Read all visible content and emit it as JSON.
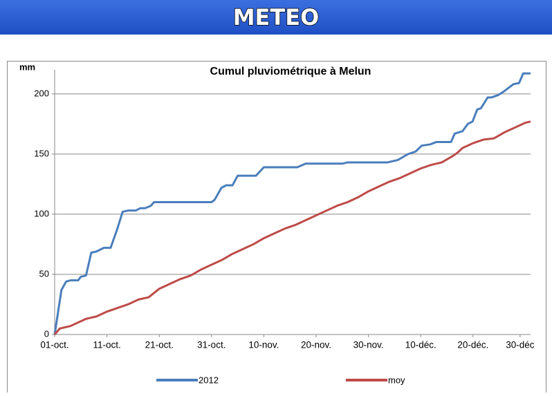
{
  "header": {
    "title": "METEO"
  },
  "chart_data": {
    "type": "line",
    "title": "Cumul pluviométrique à Melun",
    "y_label": "mm",
    "xlim": [
      0,
      91
    ],
    "ylim": [
      0,
      220
    ],
    "xticks": [
      {
        "value": 0,
        "label": "01-oct."
      },
      {
        "value": 10,
        "label": "11-oct."
      },
      {
        "value": 20,
        "label": "21-oct."
      },
      {
        "value": 30,
        "label": "31-oct."
      },
      {
        "value": 40,
        "label": "10-nov."
      },
      {
        "value": 50,
        "label": "20-nov."
      },
      {
        "value": 60,
        "label": "30-nov."
      },
      {
        "value": 70,
        "label": "10-déc."
      },
      {
        "value": 80,
        "label": "20-déc."
      },
      {
        "value": 89,
        "label": "30-déc"
      }
    ],
    "yticks": [
      0,
      50,
      100,
      150,
      200
    ],
    "grid": true,
    "legend": "bottom",
    "series": [
      {
        "name": "2012",
        "color": "#4a7ebb",
        "x": [
          0,
          1.3,
          2.2,
          3,
          4.5,
          5,
          6,
          7,
          8,
          9.4,
          10.7,
          12,
          13,
          14,
          15.5,
          16.4,
          17.3,
          18.4,
          19,
          30,
          30.6,
          31.9,
          32.8,
          34,
          35,
          38.5,
          40,
          46.4,
          48,
          55,
          56,
          63.6,
          65.6,
          67.6,
          69,
          70.2,
          71.8,
          73,
          75.8,
          76.5,
          78,
          79,
          79.9,
          80.8,
          81.5,
          82.8,
          83.5,
          84.8,
          85.9,
          87.7,
          88.8,
          89.6,
          91
        ],
        "values": [
          0,
          37,
          44,
          45,
          45,
          48,
          49,
          68,
          69,
          72,
          72,
          88,
          102,
          103,
          103,
          105,
          105,
          107,
          110,
          110,
          112,
          122,
          124,
          124,
          132,
          132,
          139,
          139,
          142,
          142,
          143,
          143,
          145,
          150,
          152,
          157,
          158,
          160,
          160,
          167,
          169,
          175,
          177,
          187,
          188,
          197,
          197,
          199,
          202,
          208,
          209,
          217,
          217
        ]
      },
      {
        "name": "moy",
        "color": "#be4b48",
        "x": [
          0,
          1,
          3,
          5,
          6,
          8,
          10,
          12,
          14,
          16,
          18,
          20,
          22,
          24,
          26,
          28,
          30,
          32,
          34,
          36,
          38,
          40,
          42,
          44,
          46,
          48,
          50,
          52,
          54,
          56,
          58,
          60,
          62,
          64,
          66,
          68,
          70,
          72,
          74,
          76,
          77,
          78,
          80,
          82,
          84,
          86,
          88,
          90,
          91
        ],
        "values": [
          0,
          5,
          7,
          11,
          13,
          15,
          19,
          22,
          25,
          29,
          31,
          38,
          42,
          46,
          49,
          54,
          58,
          62,
          67,
          71,
          75,
          80,
          84,
          88,
          91,
          95,
          99,
          103,
          107,
          110,
          114,
          119,
          123,
          127,
          130,
          134,
          138,
          141,
          143,
          148,
          151,
          155,
          159,
          162,
          163,
          168,
          172,
          176,
          177
        ]
      }
    ]
  }
}
